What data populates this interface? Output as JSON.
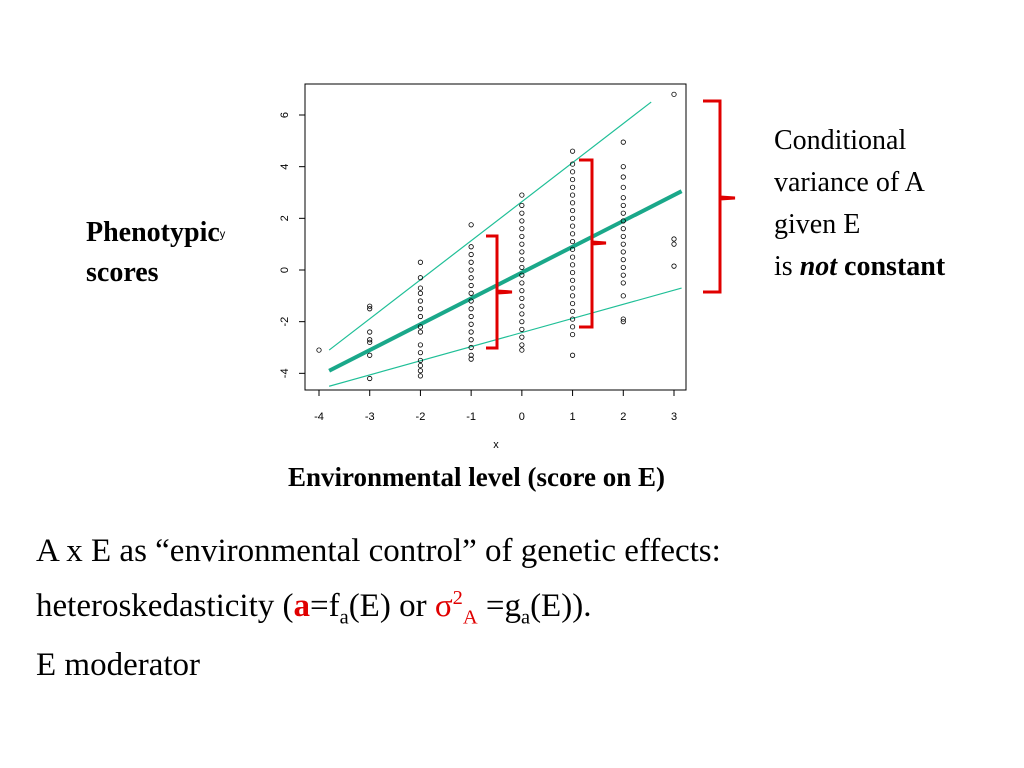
{
  "chart_data": {
    "type": "scatter",
    "x_ticks": [
      "-4",
      "-3",
      "-2",
      "-1",
      "0",
      "1",
      "2",
      "3"
    ],
    "y_ticks": [
      "-4",
      "-2",
      "0",
      "2",
      "4",
      "6"
    ],
    "xlabel": "x",
    "ylabel": "y",
    "xlim": [
      -4.2,
      3.2
    ],
    "ylim": [
      -4.7,
      7.2
    ],
    "points": [
      [
        -4,
        -3.1
      ],
      [
        -3,
        -1.4
      ],
      [
        -3,
        -1.5
      ],
      [
        -3,
        -2.4
      ],
      [
        -3,
        -2.7
      ],
      [
        -3,
        -2.8
      ],
      [
        -3,
        -3.3
      ],
      [
        -3,
        -4.2
      ],
      [
        -2,
        0.3
      ],
      [
        -2,
        -0.3
      ],
      [
        -2,
        -0.7
      ],
      [
        -2,
        -0.9
      ],
      [
        -2,
        -1.2
      ],
      [
        -2,
        -1.5
      ],
      [
        -2,
        -1.8
      ],
      [
        -2,
        -2.2
      ],
      [
        -2,
        -2.4
      ],
      [
        -2,
        -2.9
      ],
      [
        -2,
        -3.2
      ],
      [
        -2,
        -3.5
      ],
      [
        -2,
        -3.7
      ],
      [
        -2,
        -3.9
      ],
      [
        -2,
        -4.1
      ],
      [
        -1,
        1.75
      ],
      [
        -1,
        0.9
      ],
      [
        -1,
        0.6
      ],
      [
        -1,
        0.3
      ],
      [
        -1,
        0.0
      ],
      [
        -1,
        -0.3
      ],
      [
        -1,
        -0.6
      ],
      [
        -1,
        -0.9
      ],
      [
        -1,
        -1.2
      ],
      [
        -1,
        -1.5
      ],
      [
        -1,
        -1.8
      ],
      [
        -1,
        -2.1
      ],
      [
        -1,
        -2.4
      ],
      [
        -1,
        -2.7
      ],
      [
        -1,
        -3.0
      ],
      [
        -1,
        -3.3
      ],
      [
        -1,
        -3.45
      ],
      [
        0,
        2.9
      ],
      [
        0,
        2.5
      ],
      [
        0,
        2.2
      ],
      [
        0,
        1.9
      ],
      [
        0,
        1.6
      ],
      [
        0,
        1.3
      ],
      [
        0,
        1.0
      ],
      [
        0,
        0.7
      ],
      [
        0,
        0.4
      ],
      [
        0,
        0.1
      ],
      [
        0,
        -0.2
      ],
      [
        0,
        -0.5
      ],
      [
        0,
        -0.8
      ],
      [
        0,
        -1.1
      ],
      [
        0,
        -1.4
      ],
      [
        0,
        -1.7
      ],
      [
        0,
        -2.0
      ],
      [
        0,
        -2.3
      ],
      [
        0,
        -2.6
      ],
      [
        0,
        -2.9
      ],
      [
        0,
        -3.1
      ],
      [
        1,
        4.6
      ],
      [
        1,
        4.1
      ],
      [
        1,
        3.8
      ],
      [
        1,
        3.5
      ],
      [
        1,
        3.2
      ],
      [
        1,
        2.9
      ],
      [
        1,
        2.6
      ],
      [
        1,
        2.3
      ],
      [
        1,
        2.0
      ],
      [
        1,
        1.7
      ],
      [
        1,
        1.4
      ],
      [
        1,
        1.1
      ],
      [
        1,
        0.8
      ],
      [
        1,
        0.5
      ],
      [
        1,
        0.2
      ],
      [
        1,
        -0.1
      ],
      [
        1,
        -0.4
      ],
      [
        1,
        -0.7
      ],
      [
        1,
        -1.0
      ],
      [
        1,
        -1.3
      ],
      [
        1,
        -1.6
      ],
      [
        1,
        -1.9
      ],
      [
        1,
        -2.2
      ],
      [
        1,
        -2.5
      ],
      [
        1,
        -3.3
      ],
      [
        2,
        4.95
      ],
      [
        2,
        4.0
      ],
      [
        2,
        3.6
      ],
      [
        2,
        3.2
      ],
      [
        2,
        2.8
      ],
      [
        2,
        2.5
      ],
      [
        2,
        2.2
      ],
      [
        2,
        1.9
      ],
      [
        2,
        1.6
      ],
      [
        2,
        1.3
      ],
      [
        2,
        1.0
      ],
      [
        2,
        0.7
      ],
      [
        2,
        0.4
      ],
      [
        2,
        0.1
      ],
      [
        2,
        -0.2
      ],
      [
        2,
        -0.5
      ],
      [
        2,
        -1.0
      ],
      [
        2,
        -1.9
      ],
      [
        2,
        -2.0
      ],
      [
        3,
        6.8
      ],
      [
        3,
        1.2
      ],
      [
        3,
        1.0
      ],
      [
        3,
        0.15
      ]
    ],
    "lines": [
      {
        "name": "mean",
        "color": "#1aa88a",
        "from": [
          -3.8,
          -3.9
        ],
        "to": [
          3.15,
          3.05
        ]
      },
      {
        "name": "upper",
        "color": "#1fbf97",
        "from": [
          -3.8,
          -3.1
        ],
        "to": [
          2.55,
          6.5
        ]
      },
      {
        "name": "lower",
        "color": "#1fbf97",
        "from": [
          -3.8,
          -4.5
        ],
        "to": [
          3.15,
          -0.7
        ]
      }
    ]
  },
  "labels": {
    "phenotypic": "Phenotypic",
    "y_small": "y",
    "scores": "scores",
    "env_level": "Environmental level (score on E)",
    "cond_line1": "Conditional",
    "cond_line2": "variance of A",
    "cond_line3": "given E",
    "cond_is": "is",
    "cond_not": "not",
    "cond_constant": "constant"
  },
  "bottom_text": {
    "line1": "A x E  as “environmental control” of genetic effects:",
    "line2_a": "heteroskedasticity (",
    "line2_bold": "a",
    "line2_b": "=f",
    "line2_sub_a": "a",
    "line2_c": "(E) or ",
    "line2_sigma": "σ",
    "line2_sup": "2",
    "line2_sub_A": "A",
    "line2_d": " =g",
    "line2_sub_a2": "a",
    "line2_e": "(E)).",
    "line3": "E moderator"
  },
  "colors": {
    "brace": "#e00000",
    "line": "#1aa88a"
  }
}
